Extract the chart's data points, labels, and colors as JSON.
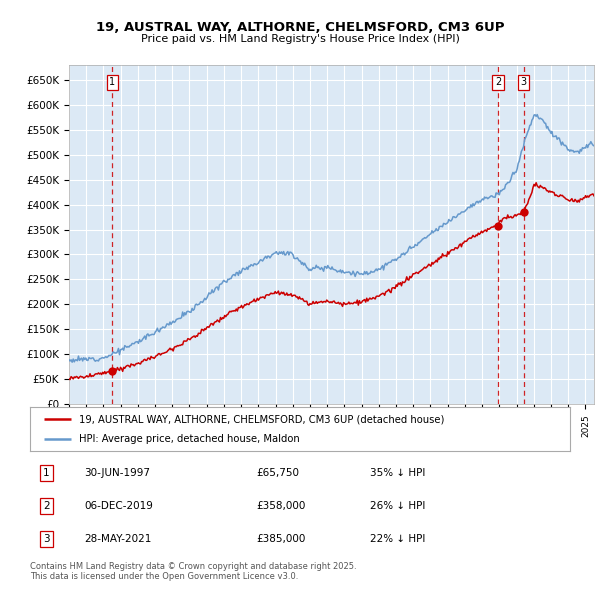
{
  "title_line1": "19, AUSTRAL WAY, ALTHORNE, CHELMSFORD, CM3 6UP",
  "title_line2": "Price paid vs. HM Land Registry's House Price Index (HPI)",
  "background_color": "#dce9f5",
  "plot_bg_color": "#dce9f5",
  "grid_color": "#ffffff",
  "ylim": [
    0,
    680000
  ],
  "yticks": [
    0,
    50000,
    100000,
    150000,
    200000,
    250000,
    300000,
    350000,
    400000,
    450000,
    500000,
    550000,
    600000,
    650000
  ],
  "ytick_labels": [
    "£0",
    "£50K",
    "£100K",
    "£150K",
    "£200K",
    "£250K",
    "£300K",
    "£350K",
    "£400K",
    "£450K",
    "£500K",
    "£550K",
    "£600K",
    "£650K"
  ],
  "legend_label_red": "19, AUSTRAL WAY, ALTHORNE, CHELMSFORD, CM3 6UP (detached house)",
  "legend_label_blue": "HPI: Average price, detached house, Maldon",
  "sale_dates": [
    1997.5,
    2019.92,
    2021.41
  ],
  "sale_prices": [
    65750,
    358000,
    385000
  ],
  "sale_labels": [
    "1",
    "2",
    "3"
  ],
  "table_rows": [
    {
      "num": "1",
      "date": "30-JUN-1997",
      "price": "£65,750",
      "pct": "35% ↓ HPI"
    },
    {
      "num": "2",
      "date": "06-DEC-2019",
      "price": "£358,000",
      "pct": "26% ↓ HPI"
    },
    {
      "num": "3",
      "date": "28-MAY-2021",
      "price": "£385,000",
      "pct": "22% ↓ HPI"
    }
  ],
  "footnote": "Contains HM Land Registry data © Crown copyright and database right 2025.\nThis data is licensed under the Open Government Licence v3.0.",
  "red_color": "#cc0000",
  "blue_color": "#6699cc",
  "xlim": [
    1995,
    2025.5
  ],
  "xtick_start": 1995,
  "xtick_end": 2026
}
